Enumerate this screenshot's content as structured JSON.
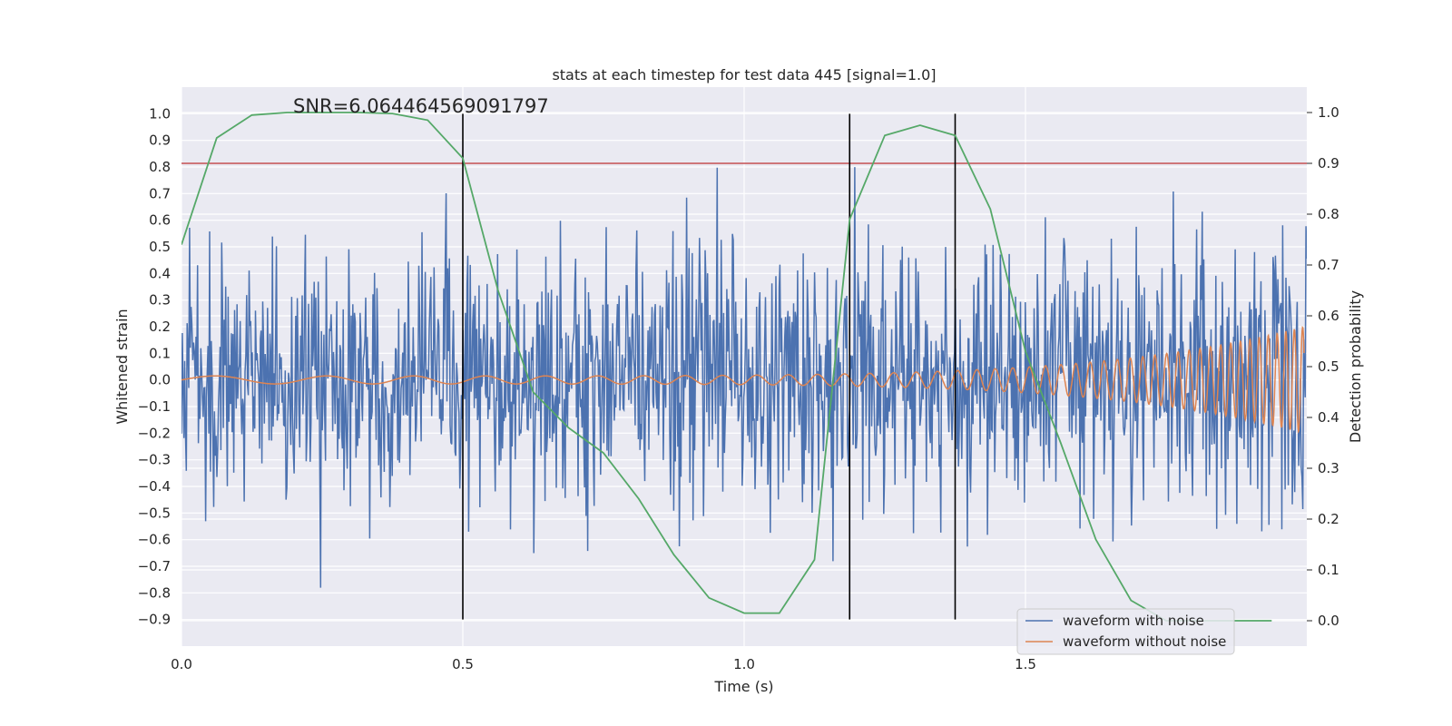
{
  "chart_data": {
    "type": "line",
    "title": "stats at each timestep for test data 445 [signal=1.0]",
    "annotation": "SNR=6.064464569091797",
    "xlabel": "Time (s)",
    "ylabel": "Whitened strain",
    "y2label": "Detection probability",
    "xlim": [
      0.0,
      2.0
    ],
    "ylim": [
      -1.0,
      1.1
    ],
    "y2lim": [
      -0.05,
      1.05
    ],
    "xticks": [
      0.0,
      0.5,
      1.0,
      1.5
    ],
    "xtick_labels": [
      "0.0",
      "0.5",
      "1.0",
      "1.5"
    ],
    "yticks": [
      -0.9,
      -0.8,
      -0.7,
      -0.6,
      -0.5,
      -0.4,
      -0.3,
      -0.2,
      -0.1,
      0.0,
      0.1,
      0.2,
      0.3,
      0.4,
      0.5,
      0.6,
      0.7,
      0.8,
      0.9,
      1.0
    ],
    "ytick_labels": [
      "−0.9",
      "−0.8",
      "−0.7",
      "−0.6",
      "−0.5",
      "−0.4",
      "−0.3",
      "−0.2",
      "−0.1",
      "0.0",
      "0.1",
      "0.2",
      "0.3",
      "0.4",
      "0.5",
      "0.6",
      "0.7",
      "0.8",
      "0.9",
      "1.0"
    ],
    "y2ticks": [
      0.0,
      0.1,
      0.2,
      0.3,
      0.4,
      0.5,
      0.6,
      0.7,
      0.8,
      0.9,
      1.0
    ],
    "y2tick_labels": [
      "0.0",
      "0.1",
      "0.2",
      "0.3",
      "0.4",
      "0.5",
      "0.6",
      "0.7",
      "0.8",
      "0.9",
      "1.0"
    ],
    "threshold": {
      "axis": "y2",
      "value": 0.9,
      "color": "#c44e52"
    },
    "vlines": [
      {
        "x": 0.5,
        "y_from": -0.9,
        "y_to": 1.0
      },
      {
        "x": 1.1875,
        "y_from": -0.9,
        "y_to": 1.0
      },
      {
        "x": 1.375,
        "y_from": -0.9,
        "y_to": 1.0
      }
    ],
    "series": [
      {
        "name": "waveform with noise",
        "color": "#4c72b0",
        "axis": "y",
        "generated": {
          "duration": 2.0,
          "samples": 1400,
          "std": 0.24,
          "spike_max": 1.0,
          "spike_min": -0.87,
          "seed": 445
        }
      },
      {
        "name": "waveform without noise",
        "color": "#dd8452",
        "axis": "y",
        "chirp": {
          "f0": 4.0,
          "f_end": 60.0,
          "t_coalesce": 2.08,
          "amp0": 0.015,
          "amp_end": 0.2
        }
      },
      {
        "name": "detection probability",
        "color": "#55a868",
        "axis": "y2",
        "x": [
          0.0,
          0.0625,
          0.125,
          0.1875,
          0.25,
          0.3125,
          0.375,
          0.4375,
          0.5,
          0.5625,
          0.625,
          0.6875,
          0.75,
          0.8125,
          0.875,
          0.9375,
          1.0,
          1.0625,
          1.125,
          1.1875,
          1.25,
          1.3125,
          1.375,
          1.4375,
          1.5,
          1.5625,
          1.625,
          1.6875,
          1.75,
          1.8125,
          1.875,
          1.9375
        ],
        "values": [
          0.74,
          0.95,
          0.995,
          1.0,
          1.0,
          1.0,
          0.998,
          0.985,
          0.91,
          0.65,
          0.45,
          0.38,
          0.33,
          0.24,
          0.13,
          0.045,
          0.015,
          0.015,
          0.12,
          0.79,
          0.955,
          0.975,
          0.955,
          0.81,
          0.53,
          0.35,
          0.16,
          0.04,
          0.0,
          0.0,
          0.0,
          0.0
        ]
      }
    ],
    "legend": {
      "placement": "lower-right",
      "entries": [
        "waveform with noise",
        "waveform without noise"
      ]
    }
  }
}
